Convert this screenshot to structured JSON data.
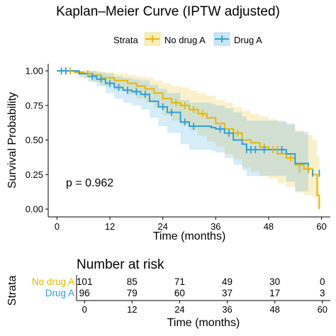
{
  "title": "Kaplan–Meier Curve (IPTW adjusted)",
  "legend": {
    "title": "Strata",
    "placement": "top-center"
  },
  "colors": {
    "no_drug": "#E7B800",
    "drug": "#2E9FDF"
  },
  "p_value_text": "p = 0.962",
  "risk_table": {
    "title": "Number at risk",
    "strata_label": "Strata",
    "xlabel": "Time (months)",
    "times": [
      0,
      12,
      24,
      36,
      48,
      60
    ],
    "rows": [
      {
        "label": "No drug A",
        "values": [
          "101",
          "85",
          "71",
          "49",
          "30",
          "0"
        ]
      },
      {
        "label": "Drug A",
        "values": [
          "96",
          "79",
          "60",
          "37",
          "17",
          "3"
        ]
      }
    ]
  },
  "chart_data": {
    "type": "line",
    "title": "Kaplan–Meier Curve (IPTW adjusted)",
    "xlabel": "Time (months)",
    "ylabel": "Survival Probability",
    "xlim": [
      -2,
      62
    ],
    "ylim": [
      0,
      1
    ],
    "xticks": [
      0,
      12,
      24,
      36,
      48,
      60
    ],
    "yticks": [
      "0.00",
      "0.25",
      "0.50",
      "0.75",
      "1.00"
    ],
    "grid": false,
    "series": [
      {
        "name": "No drug A",
        "color": "#E7B800",
        "step_x": [
          0,
          4,
          6,
          8,
          10,
          13,
          16,
          18,
          20,
          22,
          24,
          26,
          28,
          30,
          32,
          34,
          36,
          38,
          40,
          42,
          44,
          46,
          48,
          50,
          52,
          54,
          56,
          58,
          59,
          59.5
        ],
        "step_y": [
          1.0,
          0.99,
          0.98,
          0.97,
          0.95,
          0.93,
          0.91,
          0.89,
          0.87,
          0.84,
          0.8,
          0.77,
          0.75,
          0.72,
          0.69,
          0.66,
          0.62,
          0.58,
          0.55,
          0.5,
          0.48,
          0.45,
          0.43,
          0.4,
          0.37,
          0.32,
          0.29,
          0.25,
          0.1,
          0.0
        ],
        "upper": [
          1.0,
          1.0,
          1.0,
          1.0,
          0.99,
          0.98,
          0.97,
          0.96,
          0.95,
          0.93,
          0.91,
          0.89,
          0.88,
          0.86,
          0.84,
          0.82,
          0.79,
          0.77,
          0.74,
          0.71,
          0.69,
          0.67,
          0.65,
          0.63,
          0.61,
          0.57,
          0.54,
          0.5,
          0.38,
          0.3
        ],
        "lower": [
          1.0,
          0.97,
          0.95,
          0.92,
          0.89,
          0.86,
          0.83,
          0.8,
          0.77,
          0.73,
          0.68,
          0.64,
          0.61,
          0.57,
          0.53,
          0.49,
          0.45,
          0.4,
          0.36,
          0.3,
          0.27,
          0.24,
          0.22,
          0.19,
          0.16,
          0.12,
          0.1,
          0.08,
          0.0,
          0.0
        ],
        "censor_x": [
          2,
          3,
          7,
          27,
          29,
          31,
          33,
          41,
          47,
          49,
          50,
          53,
          55,
          57
        ],
        "censor_y": [
          1.0,
          1.0,
          0.98,
          0.77,
          0.75,
          0.72,
          0.69,
          0.55,
          0.45,
          0.43,
          0.43,
          0.37,
          0.29,
          0.29
        ]
      },
      {
        "name": "Drug A",
        "color": "#2E9FDF",
        "step_x": [
          0,
          5,
          7,
          9,
          11,
          13,
          15,
          17,
          19,
          21,
          23,
          25,
          28,
          30,
          33,
          35,
          36,
          38,
          40,
          42,
          43,
          46,
          48,
          52,
          54,
          57
        ],
        "step_y": [
          1.0,
          0.98,
          0.96,
          0.94,
          0.91,
          0.88,
          0.86,
          0.85,
          0.83,
          0.78,
          0.74,
          0.7,
          0.63,
          0.6,
          0.6,
          0.59,
          0.58,
          0.55,
          0.5,
          0.47,
          0.43,
          0.43,
          0.43,
          0.4,
          0.33,
          0.26
        ],
        "upper": [
          1.0,
          1.0,
          1.0,
          0.99,
          0.98,
          0.96,
          0.95,
          0.94,
          0.93,
          0.9,
          0.87,
          0.84,
          0.79,
          0.77,
          0.77,
          0.76,
          0.75,
          0.73,
          0.7,
          0.67,
          0.64,
          0.64,
          0.64,
          0.62,
          0.56,
          0.5
        ],
        "lower": [
          1.0,
          0.95,
          0.92,
          0.89,
          0.84,
          0.8,
          0.77,
          0.75,
          0.72,
          0.66,
          0.6,
          0.55,
          0.47,
          0.43,
          0.43,
          0.42,
          0.41,
          0.37,
          0.32,
          0.28,
          0.24,
          0.24,
          0.24,
          0.2,
          0.13,
          0.06
        ],
        "censor_x": [
          1,
          2,
          8,
          10,
          12,
          14,
          16,
          18,
          20,
          24,
          26,
          29,
          31,
          37,
          39,
          43,
          44,
          45,
          47,
          51,
          58,
          59.5
        ],
        "censor_y": [
          1.0,
          1.0,
          0.96,
          0.94,
          0.91,
          0.88,
          0.86,
          0.85,
          0.83,
          0.74,
          0.7,
          0.63,
          0.6,
          0.58,
          0.55,
          0.43,
          0.43,
          0.43,
          0.43,
          0.43,
          0.26,
          0.26
        ]
      }
    ]
  }
}
